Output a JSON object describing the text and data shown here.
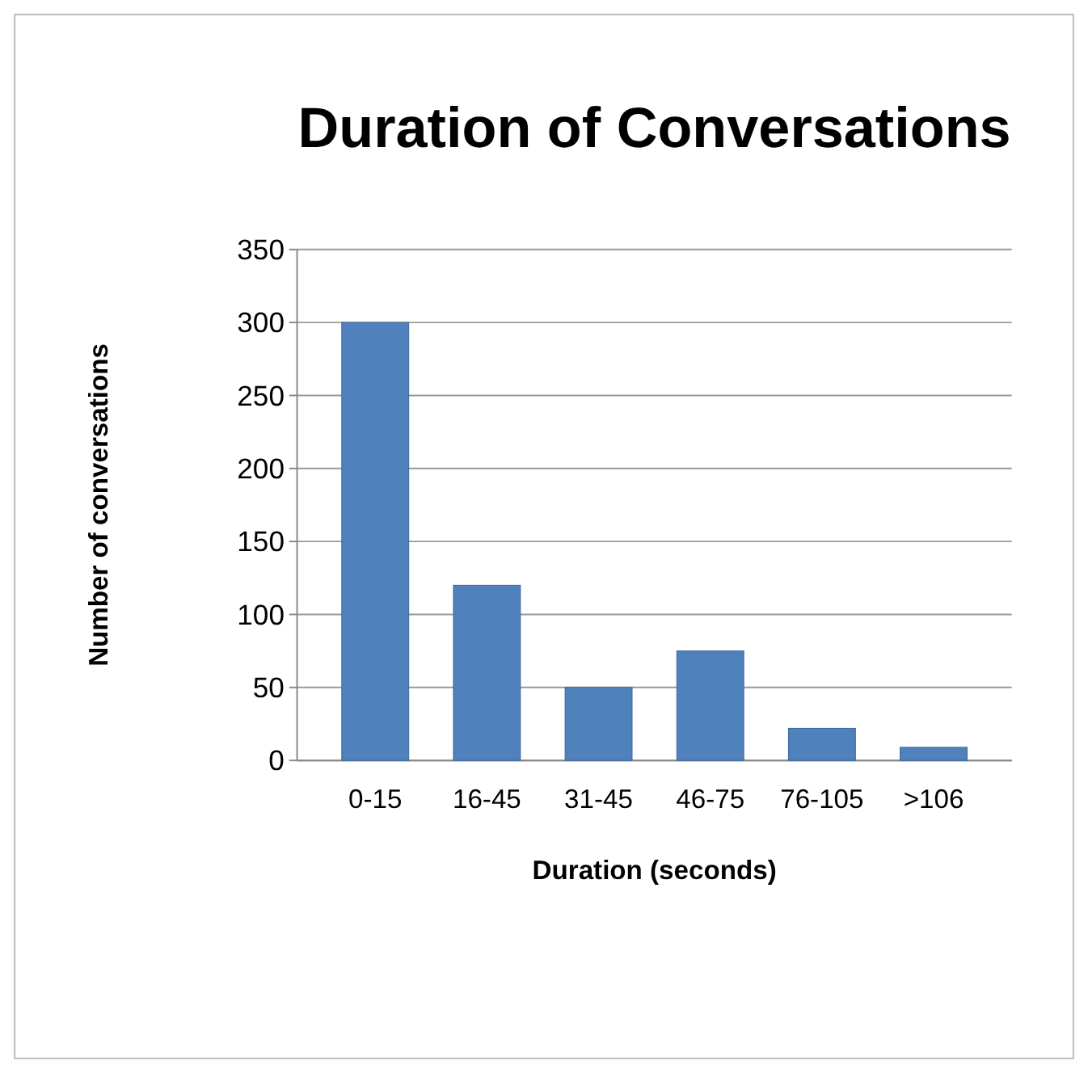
{
  "chart_data": {
    "type": "bar",
    "title": "Duration of Conversations",
    "xlabel": "Duration (seconds)",
    "ylabel": "Number of conversations",
    "categories": [
      "0-15",
      "16-45",
      "31-45",
      "46-75",
      "76-105",
      ">106"
    ],
    "values": [
      300,
      120,
      50,
      75,
      22,
      9
    ],
    "color": "#4f81bd",
    "ylim": [
      0,
      350
    ],
    "yticks": [
      0,
      50,
      100,
      150,
      200,
      250,
      300,
      350
    ],
    "grid": "y"
  }
}
